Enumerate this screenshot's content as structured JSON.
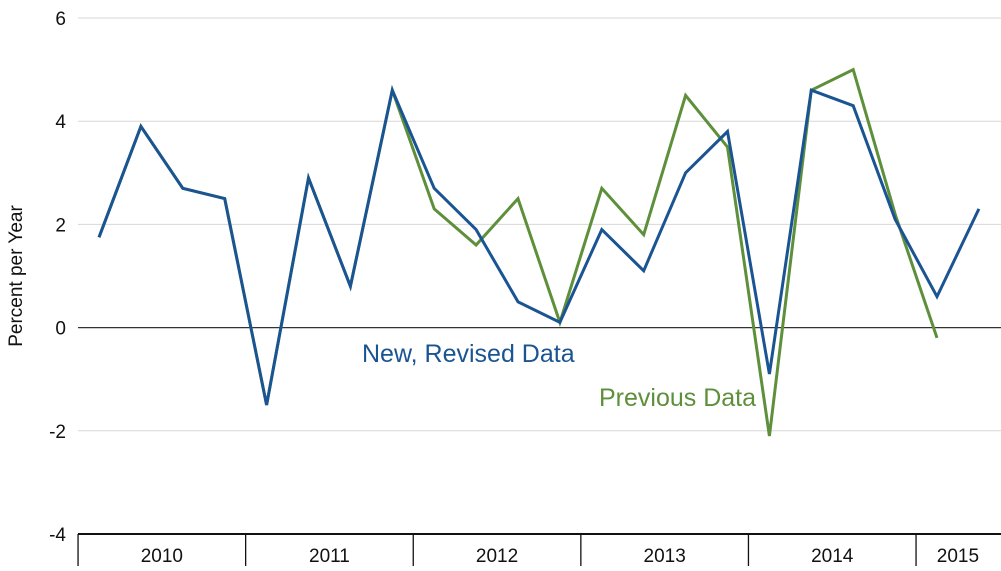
{
  "chart_data": {
    "type": "line",
    "ylabel": "Percent per Year",
    "xlabel": "",
    "ylim": [
      -4,
      6
    ],
    "yticks": [
      -4,
      -2,
      0,
      2,
      4,
      6
    ],
    "ytick_labels": [
      "-4",
      "-2",
      "0",
      "2",
      "4",
      "6"
    ],
    "year_labels": [
      "2010",
      "2011",
      "2012",
      "2013",
      "2014",
      "2015"
    ],
    "x": [
      "2010 Q1",
      "2010 Q2",
      "2010 Q3",
      "2010 Q4",
      "2011 Q1",
      "2011 Q2",
      "2011 Q3",
      "2011 Q4",
      "2012 Q1",
      "2012 Q2",
      "2012 Q3",
      "2012 Q4",
      "2013 Q1",
      "2013 Q2",
      "2013 Q3",
      "2013 Q4",
      "2014 Q1",
      "2014 Q2",
      "2014 Q3",
      "2014 Q4",
      "2015 Q1",
      "2015 Q2"
    ],
    "grid": true,
    "series": [
      {
        "name": "New, Revised Data",
        "color": "#1a5493",
        "values": [
          1.75,
          3.9,
          2.7,
          2.5,
          -1.5,
          2.9,
          0.8,
          4.6,
          2.7,
          1.9,
          0.5,
          0.1,
          1.9,
          1.1,
          3.0,
          3.8,
          -0.9,
          4.6,
          4.3,
          2.1,
          0.6,
          2.3
        ]
      },
      {
        "name": "Previous Data",
        "color": "#5e8f3b",
        "values": [
          1.75,
          3.9,
          2.7,
          2.5,
          -1.5,
          2.9,
          0.8,
          4.6,
          2.3,
          1.6,
          2.5,
          0.1,
          2.7,
          1.8,
          4.5,
          3.5,
          -2.1,
          4.6,
          5.0,
          2.2,
          -0.2,
          null
        ]
      }
    ]
  }
}
